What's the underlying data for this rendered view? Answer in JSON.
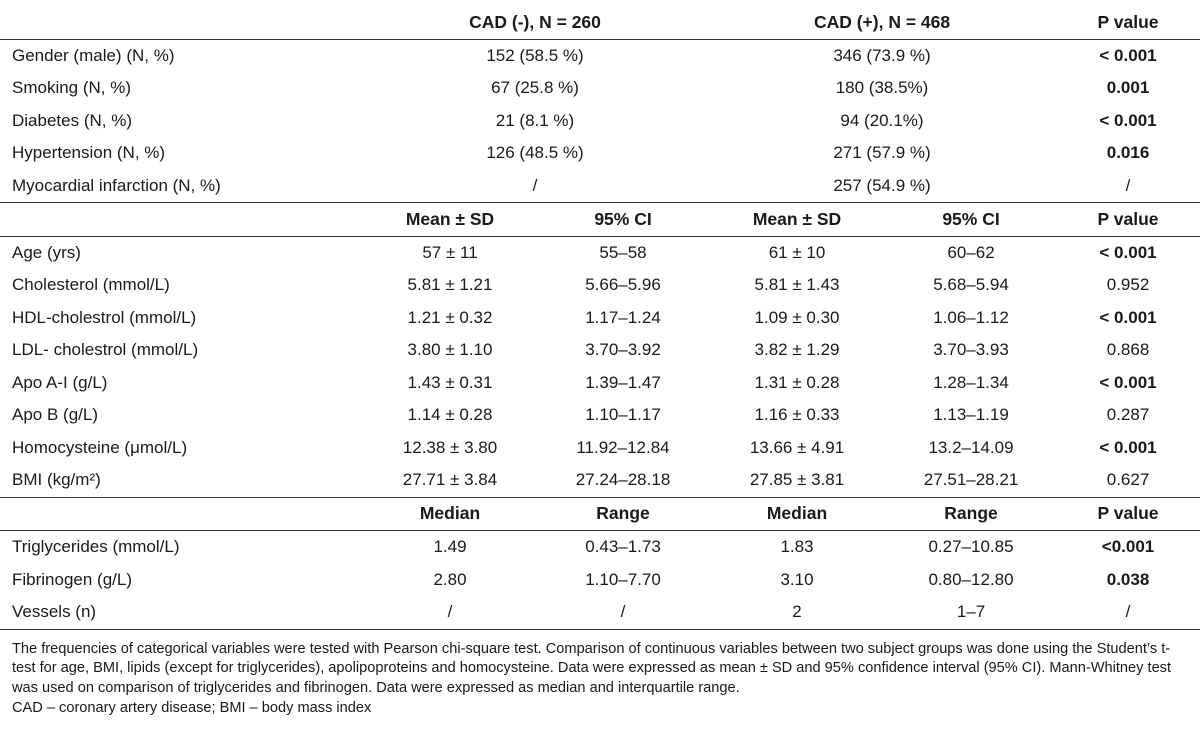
{
  "header1": {
    "col1": "CAD (-), N = 260",
    "col2": "CAD (+), N = 468",
    "pvalue": "P value"
  },
  "categorical": [
    {
      "label": "Gender (male) (N, %)",
      "neg": "152 (58.5 %)",
      "pos": "346 (73.9 %)",
      "p": "< 0.001",
      "sig": true
    },
    {
      "label": "Smoking (N, %)",
      "neg": "67 (25.8 %)",
      "pos": "180 (38.5%)",
      "p": "0.001",
      "sig": true
    },
    {
      "label": "Diabetes (N, %)",
      "neg": "21 (8.1 %)",
      "pos": "94 (20.1%)",
      "p": "< 0.001",
      "sig": true
    },
    {
      "label": "Hypertension (N, %)",
      "neg": "126 (48.5 %)",
      "pos": "271 (57.9 %)",
      "p": "0.016",
      "sig": true
    },
    {
      "label": "Myocardial infarction (N, %)",
      "neg": "/",
      "pos": "257 (54.9 %)",
      "p": "/",
      "sig": false
    }
  ],
  "header2": {
    "mean": "Mean ± SD",
    "ci": "95% CI",
    "pvalue": "P value"
  },
  "continuous": [
    {
      "label": "Age (yrs)",
      "neg_mean": "57 ± 11",
      "neg_ci": "55–58",
      "pos_mean": "61 ± 10",
      "pos_ci": "60–62",
      "p": "< 0.001",
      "sig": true
    },
    {
      "label": "Cholesterol (mmol/L)",
      "neg_mean": "5.81 ± 1.21",
      "neg_ci": "5.66–5.96",
      "pos_mean": "5.81 ± 1.43",
      "pos_ci": "5.68–5.94",
      "p": "0.952",
      "sig": false
    },
    {
      "label": "HDL-cholestrol (mmol/L)",
      "neg_mean": "1.21 ± 0.32",
      "neg_ci": "1.17–1.24",
      "pos_mean": "1.09 ± 0.30",
      "pos_ci": "1.06–1.12",
      "p": "< 0.001",
      "sig": true
    },
    {
      "label": "LDL- cholestrol (mmol/L)",
      "neg_mean": "3.80 ± 1.10",
      "neg_ci": "3.70–3.92",
      "pos_mean": "3.82 ± 1.29",
      "pos_ci": "3.70–3.93",
      "p": "0.868",
      "sig": false
    },
    {
      "label": "Apo A-I (g/L)",
      "neg_mean": "1.43 ± 0.31",
      "neg_ci": "1.39–1.47",
      "pos_mean": "1.31 ± 0.28",
      "pos_ci": "1.28–1.34",
      "p": "< 0.001",
      "sig": true
    },
    {
      "label": "Apo B (g/L)",
      "neg_mean": "1.14 ± 0.28",
      "neg_ci": "1.10–1.17",
      "pos_mean": "1.16 ± 0.33",
      "pos_ci": "1.13–1.19",
      "p": "0.287",
      "sig": false
    },
    {
      "label": "Homocysteine (μmol/L)",
      "neg_mean": "12.38 ± 3.80",
      "neg_ci": "11.92–12.84",
      "pos_mean": "13.66 ± 4.91",
      "pos_ci": "13.2–14.09",
      "p": "< 0.001",
      "sig": true
    },
    {
      "label": "BMI (kg/m²)",
      "neg_mean": "27.71 ± 3.84",
      "neg_ci": "27.24–28.18",
      "pos_mean": "27.85 ± 3.81",
      "pos_ci": "27.51–28.21",
      "p": "0.627",
      "sig": false
    }
  ],
  "header3": {
    "median": "Median",
    "range": "Range",
    "pvalue": "P value"
  },
  "nonparametric": [
    {
      "label": "Triglycerides (mmol/L)",
      "neg_median": "1.49",
      "neg_range": "0.43–1.73",
      "pos_median": "1.83",
      "pos_range": "0.27–10.85",
      "p": "<0.001",
      "sig": true
    },
    {
      "label": "Fibrinogen (g/L)",
      "neg_median": "2.80",
      "neg_range": "1.10–7.70",
      "pos_median": "3.10",
      "pos_range": "0.80–12.80",
      "p": "0.038",
      "sig": true
    },
    {
      "label": "Vessels (n)",
      "neg_median": "/",
      "neg_range": "/",
      "pos_median": "2",
      "pos_range": "1–7",
      "p": "/",
      "sig": false
    }
  ],
  "footnote": {
    "text": "The frequencies of categorical variables were tested with Pearson chi-square test. Comparison of continuous variables between two subject groups was done using the Student’s t-test for age, BMI, lipids (except for triglycerides), apolipoproteins and homocysteine. Data were expressed as mean ± SD and 95% confidence interval (95% CI). Mann-Whitney test was used on comparison of triglycerides and fibrinogen. Data were expressed as median and interquartile range.",
    "abbrev": "CAD – coronary artery disease; BMI – body mass index"
  }
}
